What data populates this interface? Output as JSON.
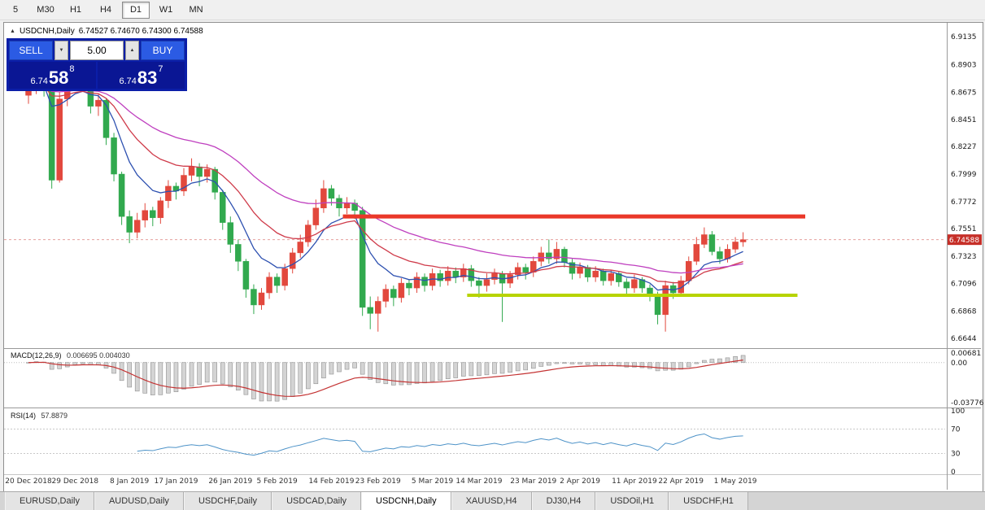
{
  "toolbar": {
    "items": [
      "5",
      "M30",
      "H1",
      "H4",
      "D1",
      "W1",
      "MN"
    ],
    "active": "D1"
  },
  "symbol_line": {
    "collapse_icon": "▲",
    "symbol": "USDCNH,Daily",
    "ohlc": "6.74527 6.74670 6.74300 6.74588"
  },
  "trade_panel": {
    "sell_label": "SELL",
    "buy_label": "BUY",
    "volume": "5.00",
    "down_icon": "▼",
    "up_icon": "▲",
    "sell_price": {
      "base": "6.74",
      "pips": "58",
      "pipette": "8"
    },
    "buy_price": {
      "base": "6.74",
      "pips": "83",
      "pipette": "7"
    }
  },
  "indicators": {
    "macd_name": "MACD(12,26,9)",
    "macd_values": "0.006695 0.004030",
    "rsi_name": "RSI(14)",
    "rsi_value": "57.8879"
  },
  "tabs": {
    "items": [
      "EURUSD,Daily",
      "AUDUSD,Daily",
      "USDCHF,Daily",
      "USDCAD,Daily",
      "USDCNH,Daily",
      "XAUUSD,H4",
      "DJ30,H4",
      "USDOil,H1",
      "USDCHF,H1"
    ],
    "active_index": 4
  },
  "chart_data": {
    "type": "candlestick",
    "symbol": "USDCNH",
    "timeframe": "Daily",
    "ylim": [
      6.6604,
      6.9195
    ],
    "current_price": "6.74588",
    "y_axis": [
      "6.9135",
      "6.8903",
      "6.8675",
      "6.8451",
      "6.8227",
      "6.7999",
      "6.7772",
      "6.7551",
      "6.7323",
      "6.7096",
      "6.6868",
      "6.6644"
    ],
    "macd_ticks": {
      "top": "0.00681",
      "zero": "0.00",
      "bottom": "-0.03776"
    },
    "rsi_ticks": [
      {
        "v": 100,
        "t": "100"
      },
      {
        "v": 70,
        "t": "70"
      },
      {
        "v": 30,
        "t": "30"
      },
      {
        "v": 0,
        "t": "0"
      }
    ],
    "rsi_levels": [
      70,
      30
    ],
    "x_labels": [
      {
        "i": 0,
        "t": "20 Dec 2018"
      },
      {
        "i": 6,
        "t": "29 Dec 2018"
      },
      {
        "i": 13,
        "t": "8 Jan 2019"
      },
      {
        "i": 19,
        "t": "17 Jan 2019"
      },
      {
        "i": 26,
        "t": "26 Jan 2019"
      },
      {
        "i": 32,
        "t": "5 Feb 2019"
      },
      {
        "i": 39,
        "t": "14 Feb 2019"
      },
      {
        "i": 45,
        "t": "23 Feb 2019"
      },
      {
        "i": 52,
        "t": "5 Mar 2019"
      },
      {
        "i": 58,
        "t": "14 Mar 2019"
      },
      {
        "i": 65,
        "t": "23 Mar 2019"
      },
      {
        "i": 71,
        "t": "2 Apr 2019"
      },
      {
        "i": 78,
        "t": "11 Apr 2019"
      },
      {
        "i": 84,
        "t": "22 Apr 2019"
      },
      {
        "i": 91,
        "t": "1 May 2019"
      }
    ],
    "hlines": [
      {
        "price": 6.765,
        "from": 41,
        "to": 100,
        "color": "#ea3829",
        "width": 5,
        "name": "resistance"
      },
      {
        "price": 6.7,
        "from": 57,
        "to": 99,
        "color": "#b7d400",
        "width": 4,
        "name": "support"
      }
    ],
    "ma_periods": [
      8,
      18,
      36
    ],
    "macd_params": [
      12,
      26,
      9
    ],
    "rsi_period": 14,
    "colors": {
      "bull": "#e2483d",
      "bear": "#31a94e",
      "ma_fast": "#2d50b0",
      "ma_mid": "#cf3b4a",
      "ma_slow": "#bf3fbf",
      "macd_hist_fill": "#d4d4d4",
      "macd_hist_stroke": "#909090",
      "macd_signal": "#c43434",
      "rsi_line": "#4e93c8",
      "price_badge": "#c62f28",
      "axis_text": "#1a1a1a"
    },
    "candles": [
      [
        6.865,
        6.879,
        6.858,
        6.872
      ],
      [
        6.872,
        6.887,
        6.866,
        6.882
      ],
      [
        6.882,
        6.886,
        6.864,
        6.87
      ],
      [
        6.87,
        6.873,
        6.788,
        6.795
      ],
      [
        6.795,
        6.868,
        6.793,
        6.862
      ],
      [
        6.862,
        6.88,
        6.856,
        6.876
      ],
      [
        6.876,
        6.89,
        6.87,
        6.883
      ],
      [
        6.883,
        6.886,
        6.868,
        6.876
      ],
      [
        6.876,
        6.879,
        6.85,
        6.856
      ],
      [
        6.856,
        6.866,
        6.848,
        6.861
      ],
      [
        6.861,
        6.862,
        6.824,
        6.83
      ],
      [
        6.83,
        6.834,
        6.794,
        6.8
      ],
      [
        6.8,
        6.802,
        6.758,
        6.765
      ],
      [
        6.765,
        6.77,
        6.743,
        6.752
      ],
      [
        6.752,
        6.768,
        6.747,
        6.762
      ],
      [
        6.762,
        6.776,
        6.756,
        6.77
      ],
      [
        6.77,
        6.773,
        6.757,
        6.764
      ],
      [
        6.764,
        6.781,
        6.759,
        6.778
      ],
      [
        6.778,
        6.795,
        6.772,
        6.79
      ],
      [
        6.79,
        6.793,
        6.779,
        6.786
      ],
      [
        6.786,
        6.805,
        6.782,
        6.799
      ],
      [
        6.799,
        6.813,
        6.794,
        6.806
      ],
      [
        6.806,
        6.809,
        6.79,
        6.798
      ],
      [
        6.798,
        6.808,
        6.793,
        6.804
      ],
      [
        6.804,
        6.806,
        6.779,
        6.785
      ],
      [
        6.785,
        6.787,
        6.754,
        6.76
      ],
      [
        6.76,
        6.765,
        6.735,
        6.742
      ],
      [
        6.742,
        6.746,
        6.72,
        6.728
      ],
      [
        6.728,
        6.73,
        6.698,
        6.705
      ],
      [
        6.705,
        6.709,
        6.6845,
        6.692
      ],
      [
        6.692,
        6.706,
        6.688,
        6.702
      ],
      [
        6.702,
        6.719,
        6.697,
        6.715
      ],
      [
        6.715,
        6.718,
        6.702,
        6.708
      ],
      [
        6.708,
        6.726,
        6.704,
        6.722
      ],
      [
        6.722,
        6.739,
        6.718,
        6.735
      ],
      [
        6.735,
        6.75,
        6.731,
        6.744
      ],
      [
        6.744,
        6.762,
        6.74,
        6.758
      ],
      [
        6.758,
        6.779,
        6.754,
        6.772
      ],
      [
        6.772,
        6.795,
        6.768,
        6.788
      ],
      [
        6.788,
        6.791,
        6.774,
        6.78
      ],
      [
        6.78,
        6.783,
        6.765,
        6.772
      ],
      [
        6.772,
        6.781,
        6.767,
        6.776
      ],
      [
        6.776,
        6.779,
        6.763,
        6.77
      ],
      [
        6.77,
        6.773,
        6.683,
        6.69
      ],
      [
        6.69,
        6.699,
        6.672,
        6.685
      ],
      [
        6.685,
        6.699,
        6.67,
        6.695
      ],
      [
        6.695,
        6.709,
        6.69,
        6.705
      ],
      [
        6.705,
        6.708,
        6.691,
        6.698
      ],
      [
        6.698,
        6.714,
        6.694,
        6.71
      ],
      [
        6.71,
        6.713,
        6.7,
        6.706
      ],
      [
        6.706,
        6.719,
        6.702,
        6.715
      ],
      [
        6.715,
        6.718,
        6.703,
        6.708
      ],
      [
        6.708,
        6.722,
        6.704,
        6.718
      ],
      [
        6.718,
        6.721,
        6.707,
        6.712
      ],
      [
        6.712,
        6.724,
        6.708,
        6.72
      ],
      [
        6.72,
        6.723,
        6.71,
        6.715
      ],
      [
        6.715,
        6.726,
        6.711,
        6.722
      ],
      [
        6.722,
        6.725,
        6.707,
        6.712
      ],
      [
        6.712,
        6.715,
        6.698,
        6.708
      ],
      [
        6.708,
        6.718,
        6.703,
        6.713
      ],
      [
        6.713,
        6.722,
        6.709,
        6.718
      ],
      [
        6.718,
        6.72,
        6.678,
        6.71
      ],
      [
        6.71,
        6.72,
        6.706,
        6.717
      ],
      [
        6.717,
        6.727,
        6.713,
        6.723
      ],
      [
        6.723,
        6.726,
        6.713,
        6.719
      ],
      [
        6.719,
        6.732,
        6.715,
        6.728
      ],
      [
        6.728,
        6.74,
        6.724,
        6.735
      ],
      [
        6.735,
        6.746,
        6.726,
        6.73
      ],
      [
        6.73,
        6.744,
        6.726,
        6.738
      ],
      [
        6.738,
        6.74,
        6.723,
        6.727
      ],
      [
        6.727,
        6.73,
        6.713,
        6.718
      ],
      [
        6.718,
        6.727,
        6.714,
        6.723
      ],
      [
        6.723,
        6.725,
        6.711,
        6.715
      ],
      [
        6.715,
        6.724,
        6.711,
        6.72
      ],
      [
        6.72,
        6.722,
        6.708,
        6.712
      ],
      [
        6.712,
        6.721,
        6.708,
        6.718
      ],
      [
        6.718,
        6.72,
        6.707,
        6.711
      ],
      [
        6.711,
        6.714,
        6.701,
        6.706
      ],
      [
        6.706,
        6.717,
        6.702,
        6.713
      ],
      [
        6.713,
        6.715,
        6.702,
        6.706
      ],
      [
        6.706,
        6.709,
        6.695,
        6.701
      ],
      [
        6.701,
        6.703,
        6.676,
        6.684
      ],
      [
        6.684,
        6.712,
        6.67,
        6.708
      ],
      [
        6.708,
        6.711,
        6.697,
        6.702
      ],
      [
        6.702,
        6.716,
        6.699,
        6.712
      ],
      [
        6.712,
        6.732,
        6.709,
        6.728
      ],
      [
        6.728,
        6.748,
        6.725,
        6.742
      ],
      [
        6.742,
        6.756,
        6.739,
        6.75
      ],
      [
        6.75,
        6.753,
        6.733,
        6.736
      ],
      [
        6.736,
        6.74,
        6.726,
        6.73
      ],
      [
        6.73,
        6.742,
        6.727,
        6.738
      ],
      [
        6.738,
        6.748,
        6.735,
        6.744
      ],
      [
        6.744,
        6.752,
        6.74,
        6.74588
      ]
    ]
  }
}
